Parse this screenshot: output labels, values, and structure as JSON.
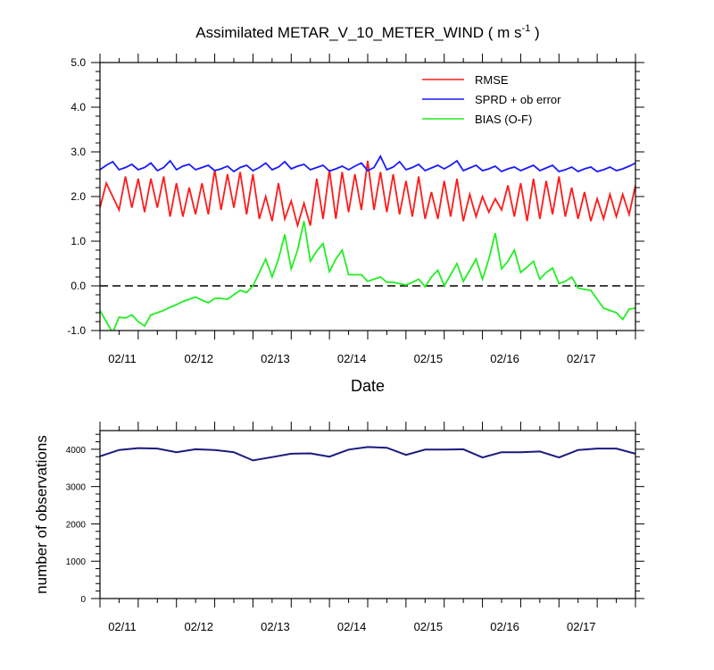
{
  "colors": {
    "rmse": "#ff1a1a",
    "spread": "#1a1aff",
    "bias": "#22ee22",
    "axis": "#000000",
    "zero_line": "#000000",
    "nobs": "#1a1a80"
  },
  "chart_data": [
    {
      "type": "line",
      "title_main": "Assimilated METAR_V_10_METER_WIND ( m s",
      "title_sup": "-1",
      "title_end": " )",
      "xlabel": "Date",
      "ylabel": "",
      "ylim": [
        -1.0,
        5.0
      ],
      "xlim": [
        0,
        84
      ],
      "y_ticks": [
        -1.0,
        0.0,
        1.0,
        2.0,
        3.0,
        4.0,
        5.0
      ],
      "y_tick_labels": [
        "-1.0",
        "0.0",
        "1.0",
        "2.0",
        "3.0",
        "4.0",
        "5.0"
      ],
      "x_tick_positions": [
        3.5,
        15.5,
        27.5,
        39.5,
        51.5,
        63.5,
        75.5
      ],
      "x_tick_labels": [
        "02/11",
        "02/12",
        "02/13",
        "02/14",
        "02/15",
        "02/16",
        "02/17"
      ],
      "zero_line": true,
      "legend": {
        "position": "top-right",
        "entries": [
          "RMSE",
          "SPRD + ob error",
          "BIAS (O-F)"
        ]
      },
      "series": [
        {
          "name": "RMSE",
          "x": [
            0,
            1,
            3,
            4,
            5,
            6,
            7,
            8,
            9,
            10,
            11,
            12,
            13,
            14,
            15,
            16,
            17,
            18,
            19,
            20,
            21,
            22,
            23,
            24,
            25,
            26,
            27,
            28,
            29,
            30,
            31,
            32,
            33,
            34,
            35,
            36,
            37,
            38,
            39,
            40,
            41,
            42,
            43,
            44,
            45,
            46,
            47,
            48,
            49,
            50,
            51,
            52,
            53,
            54,
            55,
            56,
            57,
            58,
            59,
            60,
            61,
            62,
            63,
            64,
            65,
            66,
            67,
            68,
            69,
            70,
            71,
            72,
            73,
            74,
            75,
            76,
            77,
            78,
            79,
            80,
            81,
            82,
            83,
            84
          ],
          "values": [
            1.75,
            2.3,
            1.7,
            2.45,
            1.75,
            2.4,
            1.65,
            2.4,
            1.75,
            2.45,
            1.55,
            2.3,
            1.55,
            2.2,
            1.6,
            2.3,
            1.6,
            2.6,
            1.7,
            2.5,
            1.75,
            2.55,
            1.6,
            2.5,
            1.5,
            2.0,
            1.45,
            2.3,
            1.5,
            1.9,
            1.35,
            1.85,
            1.35,
            2.4,
            1.5,
            2.6,
            1.5,
            2.55,
            1.65,
            2.5,
            1.7,
            2.8,
            1.7,
            2.55,
            1.65,
            2.5,
            1.6,
            2.35,
            1.55,
            2.45,
            1.5,
            2.1,
            1.5,
            2.35,
            1.55,
            2.4,
            1.45,
            2.05,
            1.55,
            2.0,
            1.65,
            1.95,
            1.7,
            2.25,
            1.55,
            2.3,
            1.45,
            2.4,
            1.5,
            2.35,
            1.6,
            2.45,
            1.55,
            2.2,
            1.5,
            2.1,
            1.45,
            1.95,
            1.5,
            2.05,
            1.55,
            2.05,
            1.6,
            2.25
          ]
        },
        {
          "name": "SPRD + ob error",
          "x": [
            0,
            1,
            2,
            3,
            4,
            5,
            6,
            7,
            8,
            9,
            10,
            11,
            12,
            13,
            14,
            15,
            16,
            17,
            18,
            19,
            20,
            21,
            22,
            23,
            24,
            25,
            26,
            27,
            28,
            29,
            30,
            31,
            32,
            33,
            34,
            35,
            36,
            37,
            38,
            39,
            40,
            41,
            42,
            43,
            44,
            45,
            46,
            47,
            48,
            49,
            50,
            51,
            52,
            53,
            54,
            55,
            56,
            57,
            58,
            59,
            60,
            61,
            62,
            63,
            64,
            65,
            66,
            67,
            68,
            69,
            70,
            71,
            72,
            73,
            74,
            75,
            76,
            77,
            78,
            79,
            80,
            81,
            82,
            83,
            84
          ],
          "values": [
            2.6,
            2.7,
            2.78,
            2.6,
            2.65,
            2.72,
            2.6,
            2.65,
            2.75,
            2.58,
            2.65,
            2.8,
            2.6,
            2.68,
            2.72,
            2.6,
            2.65,
            2.7,
            2.58,
            2.62,
            2.68,
            2.56,
            2.65,
            2.7,
            2.58,
            2.65,
            2.75,
            2.6,
            2.66,
            2.78,
            2.62,
            2.68,
            2.72,
            2.6,
            2.65,
            2.7,
            2.57,
            2.62,
            2.68,
            2.6,
            2.68,
            2.75,
            2.58,
            2.65,
            2.9,
            2.6,
            2.66,
            2.78,
            2.6,
            2.65,
            2.72,
            2.58,
            2.64,
            2.7,
            2.62,
            2.7,
            2.8,
            2.58,
            2.64,
            2.7,
            2.58,
            2.62,
            2.68,
            2.56,
            2.62,
            2.66,
            2.58,
            2.64,
            2.7,
            2.58,
            2.64,
            2.7,
            2.56,
            2.6,
            2.66,
            2.56,
            2.62,
            2.66,
            2.56,
            2.6,
            2.66,
            2.58,
            2.62,
            2.68,
            2.75
          ]
        },
        {
          "name": "BIAS (O-F)",
          "x": [
            0,
            1,
            2,
            3,
            4,
            5,
            6,
            7,
            8,
            9,
            10,
            11,
            12,
            13,
            14,
            15,
            16,
            17,
            18,
            19,
            20,
            21,
            22,
            23,
            24,
            25,
            26,
            27,
            28,
            29,
            30,
            31,
            32,
            33,
            34,
            35,
            36,
            37,
            38,
            39,
            40,
            41,
            42,
            43,
            44,
            45,
            46,
            47,
            48,
            49,
            50,
            51,
            52,
            53,
            54,
            55,
            56,
            57,
            58,
            59,
            60,
            61,
            62,
            63,
            64,
            65,
            66,
            67,
            68,
            69,
            70,
            71,
            72,
            73,
            74,
            75,
            76,
            77,
            78,
            79,
            80,
            81,
            82,
            83,
            84
          ],
          "values": [
            -0.55,
            -0.8,
            -1.05,
            -0.7,
            -0.72,
            -0.65,
            -0.8,
            -0.9,
            -0.65,
            -0.6,
            -0.55,
            -0.48,
            -0.42,
            -0.35,
            -0.3,
            -0.25,
            -0.32,
            -0.38,
            -0.28,
            -0.28,
            -0.3,
            -0.2,
            -0.1,
            -0.15,
            0.0,
            0.3,
            0.6,
            0.2,
            0.6,
            1.15,
            0.38,
            0.8,
            1.45,
            0.55,
            0.78,
            0.95,
            0.32,
            0.6,
            0.8,
            0.25,
            0.25,
            0.25,
            0.1,
            0.15,
            0.2,
            0.08,
            0.08,
            0.05,
            0.02,
            0.08,
            0.15,
            -0.02,
            0.2,
            0.35,
            0.0,
            0.25,
            0.5,
            0.1,
            0.35,
            0.6,
            0.15,
            0.6,
            1.18,
            0.38,
            0.55,
            0.8,
            0.3,
            0.42,
            0.55,
            0.15,
            0.3,
            0.4,
            0.05,
            0.1,
            0.2,
            -0.05,
            -0.08,
            -0.1,
            -0.3,
            -0.5,
            -0.55,
            -0.6,
            -0.75,
            -0.52,
            -0.5
          ]
        }
      ]
    },
    {
      "type": "line",
      "title": "",
      "xlabel": "",
      "ylabel": "number of observations",
      "ylim": [
        0,
        4500
      ],
      "xlim": [
        0,
        84
      ],
      "y_ticks": [
        0,
        1000,
        2000,
        3000,
        4000
      ],
      "y_tick_labels": [
        "0",
        "1000",
        "2000",
        "3000",
        "4000"
      ],
      "x_tick_positions": [
        3.5,
        15.5,
        27.5,
        39.5,
        51.5,
        63.5,
        75.5
      ],
      "x_tick_labels": [
        "02/11",
        "02/12",
        "02/13",
        "02/14",
        "02/15",
        "02/16",
        "02/17"
      ],
      "series": [
        {
          "name": "number of observations",
          "x": [
            0,
            3,
            6,
            9,
            12,
            15,
            18,
            21,
            24,
            27,
            30,
            33,
            36,
            39,
            42,
            45,
            48,
            51,
            54,
            57,
            60,
            63,
            66,
            69,
            72,
            75,
            78,
            81,
            84
          ],
          "values": [
            3810,
            3980,
            4030,
            4020,
            3920,
            4000,
            3980,
            3920,
            3700,
            3790,
            3880,
            3890,
            3800,
            3990,
            4060,
            4040,
            3850,
            3990,
            3990,
            4000,
            3780,
            3920,
            3920,
            3940,
            3780,
            3980,
            4020,
            4020,
            3880
          ]
        }
      ]
    }
  ]
}
